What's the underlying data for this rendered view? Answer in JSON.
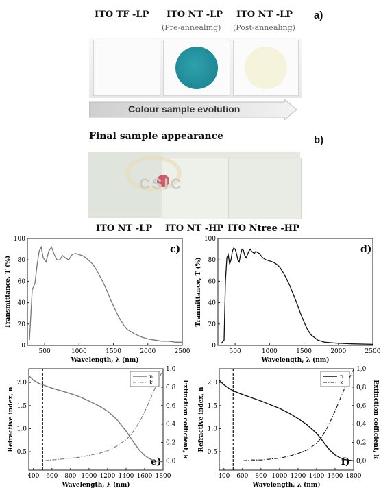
{
  "top": {
    "labels": [
      {
        "title": "ITO TF -LP",
        "sub": ""
      },
      {
        "title": "ITO NT -LP",
        "sub": "(Pre-annealing)"
      },
      {
        "title": "ITO NT -LP",
        "sub": "(Post-annealing)"
      }
    ],
    "panel_letter": "a)",
    "arrow_text": "Colour sample evolution"
  },
  "final": {
    "title": "Final sample appearance",
    "panel_letter": "b)",
    "logo_text": "CSIC",
    "labels": [
      "ITO NT -LP",
      "ITO NT -HP",
      "ITO Ntree -HP"
    ]
  },
  "chart_data": [
    {
      "id": "c",
      "type": "line",
      "panel": "c)",
      "xlabel": "Wavelength, λ (nm)",
      "ylabel": "Transmittance, T (%)",
      "xlim": [
        250,
        2500
      ],
      "ylim": [
        0,
        100
      ],
      "xticks": [
        500,
        1000,
        1500,
        2000,
        2500
      ],
      "yticks": [
        0,
        20,
        40,
        60,
        80,
        100
      ],
      "color": "#777777",
      "series": [
        {
          "x": [
            280,
            320,
            360,
            390,
            420,
            450,
            480,
            520,
            560,
            600,
            640,
            680,
            720,
            760,
            800,
            850,
            900,
            950,
            1000,
            1050,
            1100,
            1150,
            1200,
            1250,
            1300,
            1350,
            1400,
            1450,
            1500,
            1550,
            1600,
            1650,
            1700,
            1800,
            1900,
            2000,
            2100,
            2200,
            2300,
            2400,
            2500
          ],
          "y": [
            5,
            52,
            58,
            75,
            88,
            92,
            82,
            78,
            88,
            92,
            85,
            80,
            80,
            84,
            82,
            80,
            85,
            86,
            85,
            84,
            82,
            79,
            76,
            71,
            65,
            59,
            52,
            44,
            37,
            30,
            24,
            19,
            15,
            11,
            8,
            6,
            5,
            4,
            4,
            3,
            3
          ]
        }
      ]
    },
    {
      "id": "d",
      "type": "line",
      "panel": "d)",
      "xlabel": "Wavelength, λ (nm)",
      "ylabel": "Tranmittance, T (%)",
      "xlim": [
        250,
        2500
      ],
      "ylim": [
        0,
        100
      ],
      "xticks": [
        500,
        1000,
        1500,
        2000,
        2500
      ],
      "yticks": [
        0,
        20,
        40,
        60,
        80,
        100
      ],
      "color": "#111111",
      "series": [
        {
          "x": [
            300,
            340,
            360,
            380,
            400,
            420,
            440,
            460,
            480,
            500,
            520,
            540,
            560,
            580,
            600,
            620,
            640,
            660,
            680,
            700,
            720,
            740,
            760,
            780,
            800,
            850,
            900,
            950,
            1000,
            1050,
            1100,
            1150,
            1200,
            1250,
            1300,
            1350,
            1400,
            1450,
            1500,
            1550,
            1600,
            1700,
            1800,
            2000,
            2200,
            2500
          ],
          "y": [
            2,
            5,
            60,
            82,
            85,
            76,
            80,
            88,
            91,
            90,
            86,
            80,
            78,
            85,
            90,
            89,
            84,
            82,
            85,
            88,
            90,
            88,
            87,
            86,
            88,
            86,
            82,
            80,
            79,
            78,
            76,
            73,
            68,
            62,
            55,
            47,
            39,
            30,
            22,
            15,
            10,
            5,
            3,
            2,
            1.5,
            1
          ]
        }
      ]
    },
    {
      "id": "e",
      "type": "line",
      "panel": "e)",
      "xlabel": "Wavelength, λ (nm)",
      "ylabel": "Refractive index, n",
      "y2label": "Extinction cofficient, k",
      "xlim": [
        350,
        1800
      ],
      "ylim": [
        0.1,
        2.3
      ],
      "y2lim": [
        -0.1,
        1.0
      ],
      "xticks": [
        400,
        600,
        800,
        1000,
        1200,
        1400,
        1600,
        1800
      ],
      "yticks": [
        0.5,
        1.0,
        1.5,
        2.0
      ],
      "y2ticks": [
        0.0,
        0.2,
        0.4,
        0.6,
        0.8,
        1.0
      ],
      "ytick_labels": [
        "0.5",
        "1.0",
        "1.5",
        "2.0"
      ],
      "y2tick_labels": [
        "0.0",
        "0.2",
        "0.4",
        "0.6",
        "0.8",
        "1.0"
      ],
      "vline": 500,
      "color": "#777777",
      "legend": [
        "n",
        "k"
      ],
      "n": {
        "x": [
          350,
          400,
          450,
          500,
          600,
          700,
          800,
          900,
          1000,
          1100,
          1200,
          1300,
          1400,
          1450,
          1500,
          1550,
          1600,
          1650,
          1700,
          1800
        ],
        "y": [
          2.15,
          2.05,
          1.99,
          1.95,
          1.88,
          1.82,
          1.76,
          1.69,
          1.6,
          1.5,
          1.38,
          1.2,
          0.95,
          0.8,
          0.65,
          0.52,
          0.42,
          0.35,
          0.31,
          0.28
        ]
      },
      "k": {
        "x": [
          350,
          500,
          600,
          700,
          800,
          900,
          1000,
          1100,
          1200,
          1300,
          1400,
          1450,
          1500,
          1550,
          1600,
          1650,
          1700,
          1750,
          1800
        ],
        "y": [
          0.0,
          0.0,
          0.01,
          0.02,
          0.03,
          0.04,
          0.06,
          0.08,
          0.11,
          0.16,
          0.23,
          0.28,
          0.35,
          0.43,
          0.53,
          0.64,
          0.76,
          0.88,
          0.99
        ]
      }
    },
    {
      "id": "f",
      "type": "line",
      "panel": "f)",
      "xlabel": "Wavelength, λ (nm)",
      "ylabel": "Refractive index, n",
      "y2label": "Extinction cofficient, k",
      "xlim": [
        350,
        1800
      ],
      "ylim": [
        0.1,
        2.3
      ],
      "y2lim": [
        -0.1,
        1.0
      ],
      "xticks": [
        400,
        600,
        800,
        1000,
        1200,
        1400,
        1600,
        1800
      ],
      "yticks": [
        0.5,
        1.0,
        1.5,
        2.0
      ],
      "y2ticks": [
        0.0,
        0.2,
        0.4,
        0.6,
        0.8,
        1.0
      ],
      "ytick_labels": [
        "0,5",
        "1,0",
        "1,5",
        "2,0"
      ],
      "y2tick_labels": [
        "0,0",
        "0,2",
        "0,4",
        "0,6",
        "0,8",
        "1,0"
      ],
      "vline": 500,
      "color": "#111111",
      "legend": [
        "n",
        "k"
      ],
      "n": {
        "x": [
          350,
          400,
          450,
          500,
          600,
          700,
          800,
          900,
          1000,
          1100,
          1200,
          1300,
          1400,
          1450,
          1500,
          1550,
          1600,
          1650,
          1700,
          1800
        ],
        "y": [
          2.05,
          1.95,
          1.88,
          1.82,
          1.74,
          1.67,
          1.6,
          1.52,
          1.44,
          1.34,
          1.22,
          1.08,
          0.9,
          0.78,
          0.64,
          0.52,
          0.43,
          0.37,
          0.33,
          0.3
        ]
      },
      "k": {
        "x": [
          350,
          500,
          600,
          700,
          800,
          900,
          1000,
          1100,
          1200,
          1300,
          1400,
          1450,
          1500,
          1550,
          1600,
          1650,
          1700,
          1750,
          1800
        ],
        "y": [
          0.0,
          0.0,
          0.0,
          0.01,
          0.01,
          0.02,
          0.03,
          0.05,
          0.08,
          0.12,
          0.19,
          0.25,
          0.33,
          0.43,
          0.54,
          0.66,
          0.78,
          0.89,
          0.99
        ]
      }
    }
  ]
}
